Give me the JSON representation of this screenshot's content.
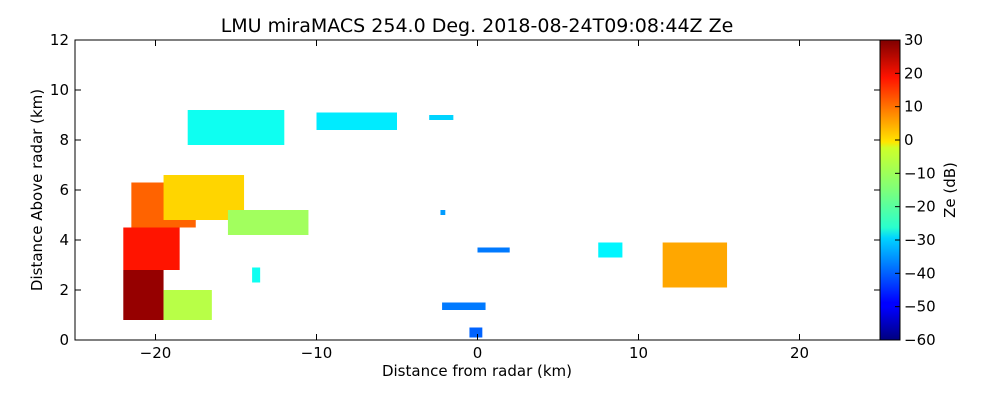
{
  "chart_data": {
    "type": "heatmap",
    "title": "LMU miraMACS 254.0 Deg. 2018-08-24T09:08:44Z  Ze",
    "xlabel": "Distance from radar (km)",
    "ylabel": "Distance Above radar  (km)",
    "xlim": [
      -25,
      25
    ],
    "ylim": [
      0,
      12
    ],
    "xticks": [
      -20,
      -10,
      0,
      10,
      20
    ],
    "yticks": [
      0,
      2,
      4,
      6,
      8,
      10,
      12
    ],
    "grid": false,
    "colorbar": {
      "label": "Ze (dB)",
      "range": [
        -60,
        30
      ],
      "ticks": [
        30,
        20,
        10,
        0,
        -10,
        -20,
        -30,
        -40,
        -50,
        -60
      ],
      "colormap": "jet"
    },
    "echoes": [
      {
        "x": [
          -22,
          -19.5
        ],
        "y": [
          0.8,
          2.8
        ],
        "ze": 28
      },
      {
        "x": [
          -22,
          -18.5
        ],
        "y": [
          2.8,
          4.5
        ],
        "ze": 17
      },
      {
        "x": [
          -21.5,
          -17.5
        ],
        "y": [
          4.5,
          6.3
        ],
        "ze": 10
      },
      {
        "x": [
          -19.5,
          -14.5
        ],
        "y": [
          4.8,
          6.6
        ],
        "ze": 0
      },
      {
        "x": [
          -15.5,
          -10.5
        ],
        "y": [
          4.2,
          5.2
        ],
        "ze": -12
      },
      {
        "x": [
          -19.5,
          -16.5
        ],
        "y": [
          0.8,
          2.0
        ],
        "ze": -10
      },
      {
        "x": [
          -18,
          -12
        ],
        "y": [
          7.8,
          9.2
        ],
        "ze": -25
      },
      {
        "x": [
          -10,
          -5
        ],
        "y": [
          8.4,
          9.1
        ],
        "ze": -28
      },
      {
        "x": [
          -3,
          -1.5
        ],
        "y": [
          8.8,
          9.0
        ],
        "ze": -30
      },
      {
        "x": [
          11.5,
          15.5
        ],
        "y": [
          2.1,
          3.9
        ],
        "ze": 4
      },
      {
        "x": [
          7.5,
          9
        ],
        "y": [
          3.3,
          3.9
        ],
        "ze": -27
      },
      {
        "x": [
          0,
          2
        ],
        "y": [
          3.5,
          3.7
        ],
        "ze": -38
      },
      {
        "x": [
          -2.2,
          0.5
        ],
        "y": [
          1.2,
          1.5
        ],
        "ze": -38
      },
      {
        "x": [
          -14,
          -13.5
        ],
        "y": [
          2.3,
          2.9
        ],
        "ze": -25
      },
      {
        "x": [
          -2.3,
          -2
        ],
        "y": [
          5.0,
          5.2
        ],
        "ze": -35
      },
      {
        "x": [
          -0.5,
          0.3
        ],
        "y": [
          0.1,
          0.5
        ],
        "ze": -40
      }
    ]
  }
}
